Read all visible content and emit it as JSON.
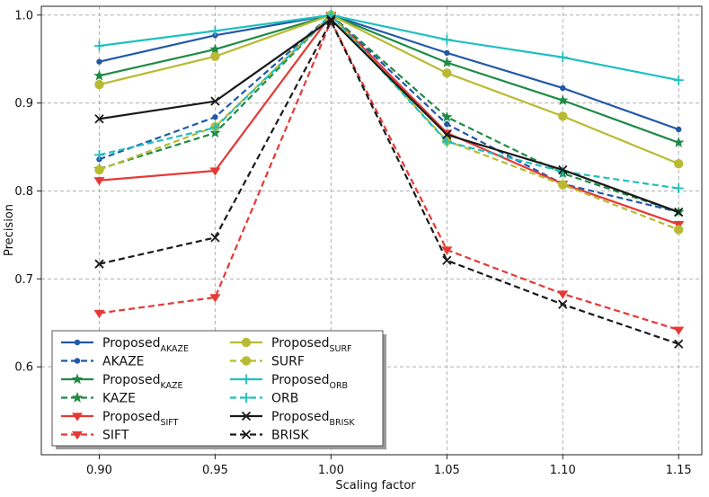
{
  "chart_data": {
    "type": "line",
    "title": "",
    "xlabel": "Scaling factor",
    "ylabel": "Precision",
    "x": [
      0.9,
      0.95,
      1.0,
      1.05,
      1.1,
      1.15
    ],
    "x_tick_labels": [
      "0.90",
      "0.95",
      "1.00",
      "1.05",
      "1.10",
      "1.15"
    ],
    "xlim": [
      0.875,
      1.16
    ],
    "ylim": [
      0.5,
      1.01
    ],
    "y_ticks": [
      0.6,
      0.7,
      0.8,
      0.9,
      1.0
    ],
    "y_tick_labels": [
      "0.6",
      "0.7",
      "0.8",
      "0.9",
      "1.0"
    ],
    "grid": true,
    "legend_position": "bottom-left",
    "series": [
      {
        "name": "Proposed",
        "sub": "AKAZE",
        "color": "#2158a8",
        "dash": "solid",
        "marker": "dot",
        "values": [
          0.947,
          0.977,
          1.0,
          0.957,
          0.917,
          0.87
        ]
      },
      {
        "name": "AKAZE",
        "sub": "",
        "color": "#2158a8",
        "dash": "dashed",
        "marker": "dot",
        "values": [
          0.836,
          0.884,
          1.0,
          0.876,
          0.808,
          0.776
        ]
      },
      {
        "name": "Proposed",
        "sub": "KAZE",
        "color": "#1f8a45",
        "dash": "solid",
        "marker": "star",
        "values": [
          0.931,
          0.961,
          1.0,
          0.946,
          0.903,
          0.855
        ]
      },
      {
        "name": "KAZE",
        "sub": "",
        "color": "#1f8a45",
        "dash": "dashed",
        "marker": "star",
        "values": [
          0.825,
          0.866,
          1.0,
          0.884,
          0.82,
          0.776
        ]
      },
      {
        "name": "Proposed",
        "sub": "SIFT",
        "color": "#e53935",
        "dash": "solid",
        "marker": "tri-down",
        "values": [
          0.812,
          0.823,
          1.0,
          0.866,
          0.808,
          0.762
        ]
      },
      {
        "name": "SIFT",
        "sub": "",
        "color": "#e53935",
        "dash": "dashed",
        "marker": "tri-down",
        "values": [
          0.661,
          0.679,
          0.993,
          0.733,
          0.683,
          0.642
        ]
      },
      {
        "name": "Proposed",
        "sub": "SURF",
        "color": "#b8bb32",
        "dash": "solid",
        "marker": "circle",
        "values": [
          0.921,
          0.953,
          1.0,
          0.934,
          0.885,
          0.831
        ]
      },
      {
        "name": "SURF",
        "sub": "",
        "color": "#b8bb32",
        "dash": "dashed",
        "marker": "circle",
        "values": [
          0.824,
          0.873,
          1.0,
          0.857,
          0.807,
          0.756
        ]
      },
      {
        "name": "Proposed",
        "sub": "ORB",
        "color": "#1fbfbf",
        "dash": "solid",
        "marker": "plus",
        "values": [
          0.965,
          0.982,
          1.0,
          0.972,
          0.952,
          0.926
        ]
      },
      {
        "name": "ORB",
        "sub": "",
        "color": "#1fbfbf",
        "dash": "dashed",
        "marker": "plus",
        "values": [
          0.841,
          0.872,
          1.0,
          0.856,
          0.822,
          0.803
        ]
      },
      {
        "name": "Proposed",
        "sub": "BRISK",
        "color": "#1a1a1a",
        "dash": "solid",
        "marker": "x",
        "values": [
          0.882,
          0.902,
          0.995,
          0.864,
          0.824,
          0.776
        ]
      },
      {
        "name": "BRISK",
        "sub": "",
        "color": "#1a1a1a",
        "dash": "dashed",
        "marker": "x",
        "values": [
          0.717,
          0.747,
          0.993,
          0.721,
          0.671,
          0.626
        ]
      }
    ]
  }
}
